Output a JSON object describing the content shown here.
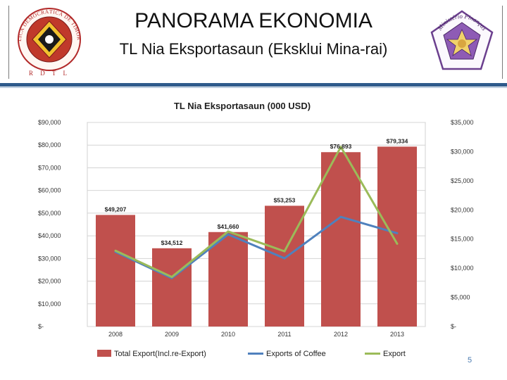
{
  "slide": {
    "title": "PANORAMA EKONOMIA",
    "subtitle": "TL  Nia Eksportasaun (Eksklui Mina-rai)",
    "page_number": "5",
    "accent_color": "#2f5b8c"
  },
  "seals": {
    "left": {
      "icon": "national-emblem-icon",
      "ring_text_top": "REPÚBLICA DEMOCRÁTICA DE TIMOR-LESTE",
      "ring_text_bottom": "R D T L"
    },
    "right": {
      "icon": "ministry-of-finance-seal-icon",
      "ring_text": "Ministério Finanças"
    }
  },
  "chart_data": {
    "type": "bar",
    "title": "TL Nia Eksportasaun (000 USD)",
    "categories": [
      "2008",
      "2009",
      "2010",
      "2011",
      "2012",
      "2013"
    ],
    "series": [
      {
        "name": "Total Export(Incl.re-Export)",
        "type": "bar",
        "axis": "left",
        "color": "#c0504d",
        "values": [
          49207,
          34512,
          41660,
          53253,
          76893,
          79334
        ],
        "labels": [
          "$49,207",
          "$34,512",
          "$41,660",
          "$53,253",
          "$76,893",
          "$79,334"
        ]
      },
      {
        "name": "Exports of Coffee",
        "type": "line",
        "axis": "right",
        "color": "#4f81bd",
        "values": [
          12800,
          8300,
          15800,
          11700,
          18800,
          16000
        ]
      },
      {
        "name": "Export",
        "type": "line",
        "axis": "right",
        "color": "#9bbb59",
        "values": [
          13000,
          8500,
          16300,
          12900,
          30800,
          14200
        ]
      }
    ],
    "left_axis": {
      "ylim": [
        0,
        90000
      ],
      "ticks": [
        0,
        10000,
        20000,
        30000,
        40000,
        50000,
        60000,
        70000,
        80000,
        90000
      ],
      "tick_labels": [
        "$-",
        "$10,000",
        "$20,000",
        "$30,000",
        "$40,000",
        "$50,000",
        "$60,000",
        "$70,000",
        "$80,000",
        "$90,000"
      ]
    },
    "right_axis": {
      "ylim": [
        0,
        35000
      ],
      "ticks": [
        0,
        5000,
        10000,
        15000,
        20000,
        25000,
        30000,
        35000
      ],
      "tick_labels": [
        "$-",
        "$5,000",
        "$10,000",
        "$15,000",
        "$20,000",
        "$25,000",
        "$30,000",
        "$35,000"
      ]
    },
    "grid": true,
    "legend": "bottom"
  }
}
